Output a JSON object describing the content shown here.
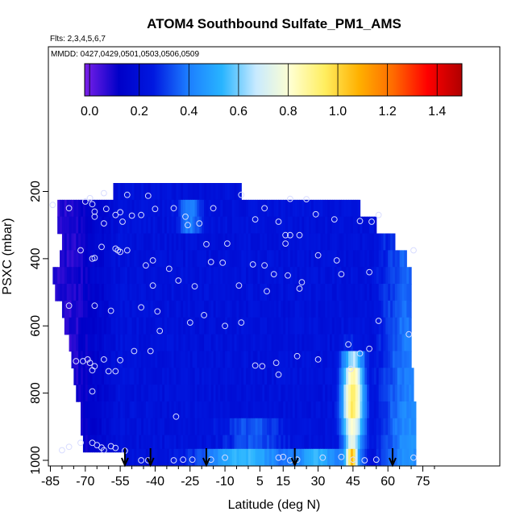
{
  "chart_data": {
    "type": "heatmap",
    "title": "ATOM4 Southbound Sulfate_PM1_AMS",
    "subtitle_flights": "Flts: 2,3,4,5,6,7",
    "subtitle_dates": "MMDD: 0427,0429,0501,0503,0506,0509",
    "xlabel": "Latitude (deg N)",
    "ylabel": "PSXC (mbar)",
    "xlim": [
      -88,
      82
    ],
    "ylim": [
      1010,
      140
    ],
    "y_reversed": true,
    "x_ticks": [
      -85,
      -70,
      -55,
      -40,
      -25,
      -10,
      5,
      15,
      30,
      45,
      60,
      75
    ],
    "x_minor_ticks": [
      -80,
      -75,
      -65,
      -60,
      -50,
      -45,
      -35,
      -30,
      -20,
      -15,
      -5,
      0,
      10,
      20,
      25,
      35,
      40,
      50,
      55,
      65,
      70,
      80
    ],
    "y_ticks": [
      200,
      400,
      600,
      800,
      1000
    ],
    "colorbar": {
      "min": -0.02,
      "max": 1.5,
      "ticks": [
        0.0,
        0.2,
        0.4,
        0.6,
        0.8,
        1.0,
        1.2,
        1.4
      ],
      "tick_labels": [
        "0.0",
        "0.2",
        "0.4",
        "0.6",
        "0.8",
        "1.0",
        "1.2",
        "1.4"
      ],
      "colors": [
        "#7a1fe8",
        "#0000c8",
        "#0018e0",
        "#1c7cff",
        "#28b4ff",
        "#c8eaff",
        "#ffffd0",
        "#ffee60",
        "#ffb000",
        "#ff6a00",
        "#ff0000",
        "#b00000"
      ]
    },
    "rows": [
      {
        "p": 200,
        "x0": -58,
        "x1": -3
      },
      {
        "p": 250,
        "x0": -82,
        "x1": 48
      },
      {
        "p": 300,
        "x0": -82,
        "x1": 55
      },
      {
        "p": 350,
        "x0": -80,
        "x1": 63
      },
      {
        "p": 400,
        "x0": -81,
        "x1": 68
      },
      {
        "p": 450,
        "x0": -84,
        "x1": 70
      },
      {
        "p": 500,
        "x0": -83,
        "x1": 70
      },
      {
        "p": 550,
        "x0": -80,
        "x1": 70
      },
      {
        "p": 600,
        "x0": -79,
        "x1": 70
      },
      {
        "p": 650,
        "x0": -77,
        "x1": 70
      },
      {
        "p": 700,
        "x0": -76,
        "x1": 70
      },
      {
        "p": 750,
        "x0": -75,
        "x1": 71
      },
      {
        "p": 800,
        "x0": -74,
        "x1": 71
      },
      {
        "p": 850,
        "x0": -72,
        "x1": 72
      },
      {
        "p": 900,
        "x0": -72,
        "x1": 72
      },
      {
        "p": 950,
        "x0": -71,
        "x1": 72
      },
      {
        "p": 990,
        "x0": -53,
        "x1": 72
      }
    ],
    "profile_markers": [
      -53,
      -42,
      -18,
      20,
      62
    ],
    "observations": [
      [
        -62,
        205
      ],
      [
        -52,
        210
      ],
      [
        -43,
        213
      ],
      [
        -3,
        210
      ],
      [
        -68,
        220
      ],
      [
        -70,
        230
      ],
      [
        -67,
        238
      ],
      [
        -84,
        240
      ],
      [
        -77,
        250
      ],
      [
        -61,
        252
      ],
      [
        -40,
        252
      ],
      [
        -32,
        250
      ],
      [
        7,
        250
      ],
      [
        18,
        222
      ],
      [
        25,
        223
      ],
      [
        -66,
        260
      ],
      [
        -57,
        270
      ],
      [
        -55,
        262
      ],
      [
        -46,
        270
      ],
      [
        -15,
        250
      ],
      [
        -50,
        272
      ],
      [
        -66,
        275
      ],
      [
        -27,
        275
      ],
      [
        -26,
        300
      ],
      [
        3,
        283
      ],
      [
        13,
        290
      ],
      [
        29,
        268
      ],
      [
        37,
        283
      ],
      [
        48,
        288
      ],
      [
        53,
        290
      ],
      [
        56,
        270
      ],
      [
        -62,
        295
      ],
      [
        -54,
        290
      ],
      [
        -21,
        295
      ],
      [
        16,
        330
      ],
      [
        18,
        330
      ],
      [
        22,
        330
      ],
      [
        -63,
        365
      ],
      [
        -57,
        370
      ],
      [
        -72,
        375
      ],
      [
        -52,
        375
      ],
      [
        -56,
        375
      ],
      [
        -66,
        398
      ],
      [
        -41,
        405
      ],
      [
        -18,
        357
      ],
      [
        -9,
        355
      ],
      [
        16,
        355
      ],
      [
        30,
        390
      ],
      [
        -67,
        400
      ],
      [
        -55,
        380
      ],
      [
        -16,
        410
      ],
      [
        -11,
        412
      ],
      [
        2,
        417
      ],
      [
        38,
        405
      ],
      [
        71,
        375
      ],
      [
        -44,
        420
      ],
      [
        -34,
        430
      ],
      [
        7,
        420
      ],
      [
        11,
        446
      ],
      [
        17,
        450
      ],
      [
        23,
        470
      ],
      [
        40,
        446
      ],
      [
        52,
        440
      ],
      [
        -30,
        465
      ],
      [
        -41,
        480
      ],
      [
        -23,
        482
      ],
      [
        -4,
        480
      ],
      [
        8,
        497
      ],
      [
        22,
        489
      ],
      [
        -77,
        540
      ],
      [
        -46,
        545
      ],
      [
        -39,
        557
      ],
      [
        -59,
        555
      ],
      [
        -66,
        540
      ],
      [
        -19,
        568
      ],
      [
        -25,
        590
      ],
      [
        -3,
        590
      ],
      [
        56,
        585
      ],
      [
        69,
        625
      ],
      [
        -38,
        615
      ],
      [
        -10,
        600
      ],
      [
        43,
        655
      ],
      [
        -49,
        675
      ],
      [
        -42,
        675
      ],
      [
        -74,
        705
      ],
      [
        -71,
        705
      ],
      [
        -68,
        710
      ],
      [
        -69,
        700
      ],
      [
        -62,
        700
      ],
      [
        -55,
        702
      ],
      [
        -66,
        720
      ],
      [
        -67,
        732
      ],
      [
        -67,
        795
      ],
      [
        3,
        718
      ],
      [
        12,
        710
      ],
      [
        21,
        690
      ],
      [
        30,
        700
      ],
      [
        -60,
        735
      ],
      [
        -57,
        735
      ],
      [
        6,
        720
      ],
      [
        13,
        745
      ],
      [
        44,
        728
      ],
      [
        48,
        682
      ],
      [
        52,
        668
      ],
      [
        -31,
        870
      ],
      [
        -80,
        970
      ],
      [
        -77,
        960
      ],
      [
        -72,
        948
      ],
      [
        -67,
        948
      ],
      [
        -65,
        955
      ],
      [
        -63,
        962
      ],
      [
        -59,
        958
      ],
      [
        -57,
        963
      ],
      [
        -62,
        970
      ],
      [
        -53,
        972
      ],
      [
        -46,
        1000
      ],
      [
        -43,
        1000
      ],
      [
        -32,
        1000
      ],
      [
        -28,
        998
      ],
      [
        -24,
        998
      ],
      [
        -16,
        998
      ],
      [
        -10,
        992
      ],
      [
        13,
        992
      ],
      [
        15,
        990
      ],
      [
        18,
        1000
      ],
      [
        21,
        998
      ],
      [
        32,
        992
      ],
      [
        40,
        990
      ],
      [
        45,
        998
      ],
      [
        50,
        1000
      ],
      [
        55,
        998
      ],
      [
        71,
        992
      ]
    ]
  }
}
